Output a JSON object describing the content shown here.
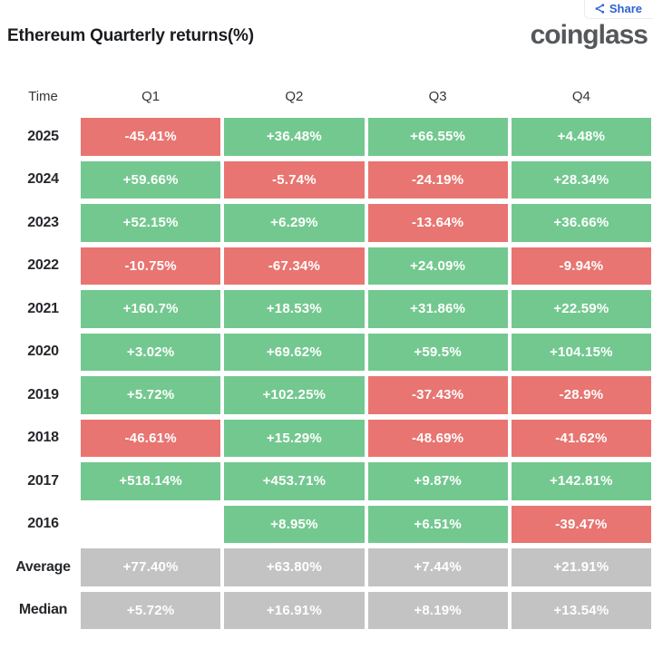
{
  "share": {
    "label": "Share"
  },
  "title": "Ethereum Quarterly returns(%)",
  "logo": "coinglass",
  "colors": {
    "positive": "#73c88f",
    "negative": "#e87571",
    "neutral": "#c3c3c3",
    "accent_blue": "#2e62d2"
  },
  "table": {
    "columns": [
      "Time",
      "Q1",
      "Q2",
      "Q3",
      "Q4"
    ],
    "rows": [
      {
        "label": "2025",
        "cells": [
          {
            "text": "-45.41%",
            "type": "red"
          },
          {
            "text": "+36.48%",
            "type": "green"
          },
          {
            "text": "+66.55%",
            "type": "green"
          },
          {
            "text": "+4.48%",
            "type": "green"
          }
        ]
      },
      {
        "label": "2024",
        "cells": [
          {
            "text": "+59.66%",
            "type": "green"
          },
          {
            "text": "-5.74%",
            "type": "red"
          },
          {
            "text": "-24.19%",
            "type": "red"
          },
          {
            "text": "+28.34%",
            "type": "green"
          }
        ]
      },
      {
        "label": "2023",
        "cells": [
          {
            "text": "+52.15%",
            "type": "green"
          },
          {
            "text": "+6.29%",
            "type": "green"
          },
          {
            "text": "-13.64%",
            "type": "red"
          },
          {
            "text": "+36.66%",
            "type": "green"
          }
        ]
      },
      {
        "label": "2022",
        "cells": [
          {
            "text": "-10.75%",
            "type": "red"
          },
          {
            "text": "-67.34%",
            "type": "red"
          },
          {
            "text": "+24.09%",
            "type": "green"
          },
          {
            "text": "-9.94%",
            "type": "red"
          }
        ]
      },
      {
        "label": "2021",
        "cells": [
          {
            "text": "+160.7%",
            "type": "green"
          },
          {
            "text": "+18.53%",
            "type": "green"
          },
          {
            "text": "+31.86%",
            "type": "green"
          },
          {
            "text": "+22.59%",
            "type": "green"
          }
        ]
      },
      {
        "label": "2020",
        "cells": [
          {
            "text": "+3.02%",
            "type": "green"
          },
          {
            "text": "+69.62%",
            "type": "green"
          },
          {
            "text": "+59.5%",
            "type": "green"
          },
          {
            "text": "+104.15%",
            "type": "green"
          }
        ]
      },
      {
        "label": "2019",
        "cells": [
          {
            "text": "+5.72%",
            "type": "green"
          },
          {
            "text": "+102.25%",
            "type": "green"
          },
          {
            "text": "-37.43%",
            "type": "red"
          },
          {
            "text": "-28.9%",
            "type": "red"
          }
        ]
      },
      {
        "label": "2018",
        "cells": [
          {
            "text": "-46.61%",
            "type": "red"
          },
          {
            "text": "+15.29%",
            "type": "green"
          },
          {
            "text": "-48.69%",
            "type": "red"
          },
          {
            "text": "-41.62%",
            "type": "red"
          }
        ]
      },
      {
        "label": "2017",
        "cells": [
          {
            "text": "+518.14%",
            "type": "green"
          },
          {
            "text": "+453.71%",
            "type": "green"
          },
          {
            "text": "+9.87%",
            "type": "green"
          },
          {
            "text": "+142.81%",
            "type": "green"
          }
        ]
      },
      {
        "label": "2016",
        "cells": [
          {
            "text": "",
            "type": "empty"
          },
          {
            "text": "+8.95%",
            "type": "green"
          },
          {
            "text": "+6.51%",
            "type": "green"
          },
          {
            "text": "-39.47%",
            "type": "red"
          }
        ]
      },
      {
        "label": "Average",
        "cells": [
          {
            "text": "+77.40%",
            "type": "gray"
          },
          {
            "text": "+63.80%",
            "type": "gray"
          },
          {
            "text": "+7.44%",
            "type": "gray"
          },
          {
            "text": "+21.91%",
            "type": "gray"
          }
        ]
      },
      {
        "label": "Median",
        "cells": [
          {
            "text": "+5.72%",
            "type": "gray"
          },
          {
            "text": "+16.91%",
            "type": "gray"
          },
          {
            "text": "+8.19%",
            "type": "gray"
          },
          {
            "text": "+13.54%",
            "type": "gray"
          }
        ]
      }
    ]
  },
  "chart_data": {
    "type": "heatmap",
    "title": "Ethereum Quarterly returns(%)",
    "columns": [
      "Q1",
      "Q2",
      "Q3",
      "Q4"
    ],
    "rows": [
      "2025",
      "2024",
      "2023",
      "2022",
      "2021",
      "2020",
      "2019",
      "2018",
      "2017",
      "2016",
      "Average",
      "Median"
    ],
    "values": [
      [
        -45.41,
        36.48,
        66.55,
        4.48
      ],
      [
        59.66,
        -5.74,
        -24.19,
        28.34
      ],
      [
        52.15,
        6.29,
        -13.64,
        36.66
      ],
      [
        -10.75,
        -67.34,
        24.09,
        -9.94
      ],
      [
        160.7,
        18.53,
        31.86,
        22.59
      ],
      [
        3.02,
        69.62,
        59.5,
        104.15
      ],
      [
        5.72,
        102.25,
        -37.43,
        -28.9
      ],
      [
        -46.61,
        15.29,
        -48.69,
        -41.62
      ],
      [
        518.14,
        453.71,
        9.87,
        142.81
      ],
      [
        null,
        8.95,
        6.51,
        -39.47
      ],
      [
        77.4,
        63.8,
        7.44,
        21.91
      ],
      [
        5.72,
        16.91,
        8.19,
        13.54
      ]
    ],
    "unit": "%",
    "legend_position": "none",
    "color_coding": "green = positive return, red = negative return, gray = summary rows (Average/Median)"
  }
}
